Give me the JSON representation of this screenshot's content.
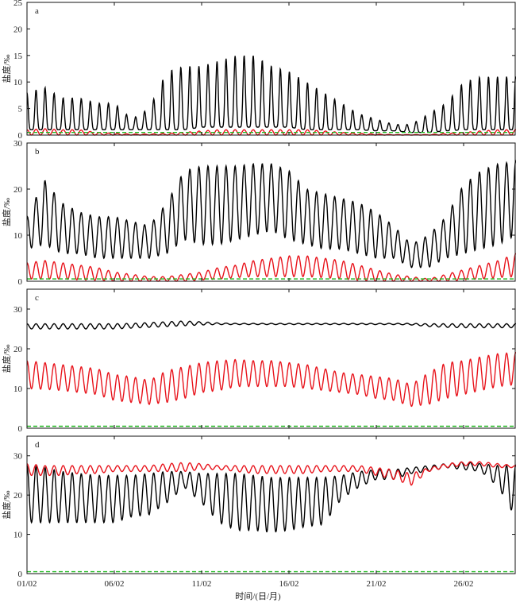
{
  "chart_data": {
    "type": "line",
    "xlabel": "时间/(日/月)",
    "x_ticks": [
      "01/02",
      "06/02",
      "11/02",
      "16/02",
      "21/02",
      "26/02"
    ],
    "xlim_days_from_01_02": [
      0,
      28
    ],
    "x_sampling": "daily high/low envelopes, day 0 = 01/02",
    "colors": {
      "black": "#000000",
      "red": "#e8141c",
      "green": "#22b822"
    },
    "panels": [
      {
        "letter": "a",
        "ylabel": "盐度/‰",
        "ylim": [
          0,
          25
        ],
        "yticks": [
          "0",
          "5",
          "10",
          "15",
          "20",
          "25"
        ],
        "threshold": 0.5,
        "series": [
          {
            "color": "black",
            "high": [
              8,
              9,
              7,
              7,
              6,
              6,
              3,
              5,
              12,
              13,
              13,
              14,
              15,
              15,
              13,
              12,
              10,
              8,
              6,
              4,
              3,
              2,
              2,
              4,
              6,
              10,
              11,
              11,
              11
            ],
            "low": [
              1,
              1,
              1,
              1,
              1,
              1,
              1,
              1,
              1,
              1,
              1.5,
              1.5,
              1.5,
              1.5,
              1.5,
              1.5,
              1,
              1,
              1,
              1,
              0.8,
              0.8,
              0.5,
              0.5,
              0.8,
              1,
              1,
              1,
              1
            ]
          },
          {
            "color": "red",
            "high": [
              1,
              1.2,
              1,
              1,
              0.5,
              0.3,
              0.2,
              0.2,
              0.3,
              0.5,
              0.8,
              1,
              1,
              1,
              1,
              1,
              1,
              0.8,
              0.5,
              0.3,
              0.2,
              0.1,
              0.1,
              0.1,
              0.3,
              0.5,
              0.8,
              1,
              1
            ],
            "low": [
              0,
              0,
              0,
              0,
              0,
              0,
              0,
              0,
              0,
              0,
              0,
              0,
              0,
              0,
              0,
              0,
              0,
              0,
              0,
              0,
              0,
              0,
              0,
              0,
              0,
              0,
              0,
              0,
              0
            ]
          }
        ]
      },
      {
        "letter": "b",
        "ylabel": "盐度/‰",
        "ylim": [
          0,
          30
        ],
        "yticks": [
          "0",
          "10",
          "20",
          "30"
        ],
        "threshold": 0.5,
        "series": [
          {
            "color": "black",
            "high": [
              14,
              22,
              17,
              15,
              14,
              14,
              13,
              12,
              17,
              24,
              25,
              25,
              25,
              25.5,
              25.5,
              24,
              20,
              19,
              18,
              17,
              15,
              12,
              8,
              10,
              14,
              21,
              24,
              25.5,
              26
            ],
            "low": [
              7,
              8,
              6,
              6,
              5,
              5,
              5,
              5,
              6,
              9,
              8,
              8,
              9,
              10,
              11,
              9,
              8,
              7,
              7,
              6,
              5,
              5,
              3,
              3,
              5,
              6,
              7,
              8,
              10
            ]
          },
          {
            "color": "red",
            "high": [
              4,
              4.5,
              4,
              3.5,
              3,
              2,
              1.5,
              1,
              1,
              1.5,
              2,
              3,
              3.5,
              4.5,
              5,
              5.5,
              5.5,
              5,
              4.5,
              3.5,
              2.5,
              1.5,
              1,
              0.5,
              1.5,
              2.5,
              3.5,
              4.5,
              6
            ],
            "low": [
              0.5,
              0.5,
              0.5,
              0.3,
              0.2,
              0,
              0,
              0,
              0,
              0,
              0.3,
              0.5,
              0.8,
              1,
              1,
              1,
              1,
              0.8,
              0.5,
              0.2,
              0,
              0,
              0,
              0,
              0,
              0.3,
              0.5,
              0.8,
              1
            ]
          }
        ]
      },
      {
        "letter": "c",
        "ylabel": "盐度/‰",
        "ylim": [
          0,
          35
        ],
        "yticks": [
          "0",
          "10",
          "20",
          "30"
        ],
        "threshold": 0.5,
        "series": [
          {
            "color": "black",
            "high": [
              26.3,
              26.3,
              26.3,
              26.3,
              26.3,
              26.3,
              26.4,
              26.6,
              26.8,
              27,
              26.8,
              26.5,
              26.4,
              26.4,
              26.4,
              26.4,
              26.4,
              26.4,
              26.4,
              26.4,
              26.4,
              26.4,
              26.4,
              26.3,
              26.3,
              26.3,
              26.3,
              26.3,
              26.3
            ],
            "low": [
              25,
              25,
              25,
              25,
              25,
              25,
              25.2,
              25.4,
              25.6,
              25.8,
              26,
              26.1,
              26.1,
              26.1,
              26.1,
              26.1,
              26.1,
              26.1,
              26.1,
              26.1,
              26.1,
              26.1,
              26,
              25.6,
              25.4,
              25.3,
              25.3,
              25.3,
              25.3
            ]
          },
          {
            "color": "red",
            "high": [
              17,
              16.5,
              16,
              15.5,
              15,
              13.5,
              13,
              12,
              14.5,
              15.5,
              16.5,
              17,
              17.3,
              17,
              17,
              16.5,
              16,
              15,
              14,
              13.5,
              13,
              12.5,
              11,
              14,
              16.5,
              17,
              18,
              18.8,
              19
            ],
            "low": [
              10,
              9.8,
              9.5,
              9,
              8.5,
              7,
              6.5,
              6,
              6.5,
              7.5,
              9,
              9.5,
              10.5,
              10.5,
              10.5,
              10.5,
              10,
              9.5,
              9,
              8.5,
              7.5,
              7,
              5.5,
              6,
              7.5,
              8.5,
              9.5,
              10.5,
              11
            ]
          }
        ]
      },
      {
        "letter": "d",
        "ylabel": "盐度/‰",
        "ylim": [
          0,
          35
        ],
        "yticks": [
          "0",
          "10",
          "20",
          "30"
        ],
        "threshold": 0.5,
        "series": [
          {
            "color": "black",
            "high": [
              27.5,
              27,
              26,
              25.5,
              25,
              25,
              25,
              25.5,
              26,
              26,
              25.5,
              25.5,
              25.5,
              25,
              24.5,
              24.5,
              24.5,
              24.5,
              25,
              26,
              26.5,
              26.5,
              27,
              27.5,
              28,
              28.5,
              28,
              27.5,
              27.5
            ],
            "low": [
              13,
              13,
              13,
              13,
              13,
              13,
              14.5,
              15,
              18,
              22,
              18,
              13,
              11,
              11,
              10.5,
              11,
              12,
              12.5,
              19,
              22,
              24,
              24,
              25.5,
              26,
              27,
              26.5,
              26,
              22,
              14
            ]
          },
          {
            "color": "red",
            "high": [
              28,
              27.5,
              27.5,
              27.5,
              27.5,
              27.5,
              27.5,
              27.5,
              28,
              28.3,
              28,
              27.5,
              27.5,
              27.5,
              27.5,
              27.5,
              27.5,
              27.5,
              27.5,
              27.5,
              27,
              26.5,
              25.5,
              27,
              28,
              28.5,
              28.5,
              28,
              27.5
            ],
            "low": [
              25,
              25,
              25,
              25.5,
              25.5,
              26,
              26,
              26,
              26,
              26,
              26.5,
              26.5,
              26,
              25.5,
              25.5,
              25.5,
              25.5,
              26,
              26,
              26,
              25,
              24,
              22.5,
              26,
              27,
              27.5,
              27.5,
              27,
              27
            ]
          }
        ]
      }
    ]
  }
}
